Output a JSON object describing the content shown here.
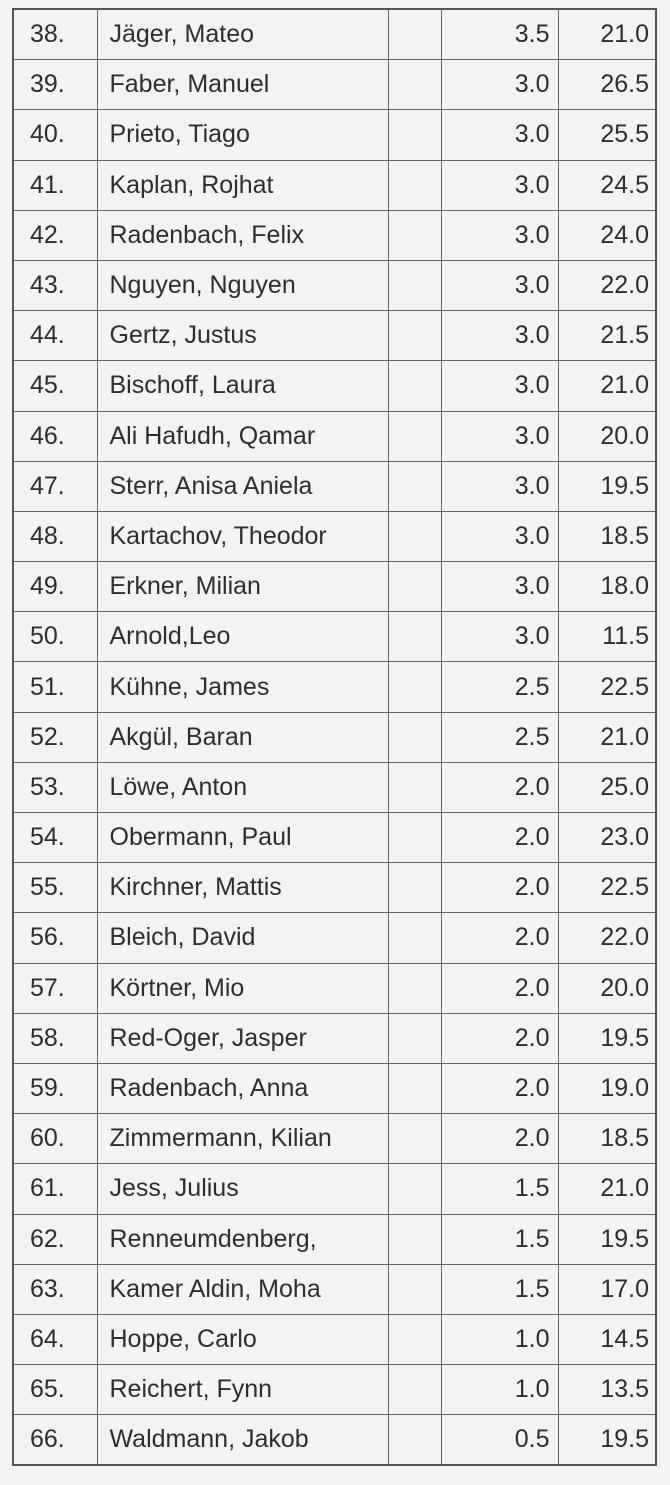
{
  "table": {
    "rows": [
      [
        "38.",
        "Jäger, Mateo",
        "3.5",
        "21.0"
      ],
      [
        "39.",
        "Faber, Manuel",
        "3.0",
        "26.5"
      ],
      [
        "40.",
        "Prieto, Tiago",
        "3.0",
        "25.5"
      ],
      [
        "41.",
        "Kaplan, Rojhat",
        "3.0",
        "24.5"
      ],
      [
        "42.",
        "Radenbach, Felix",
        "3.0",
        "24.0"
      ],
      [
        "43.",
        "Nguyen, Nguyen",
        "3.0",
        "22.0"
      ],
      [
        "44.",
        "Gertz, Justus",
        "3.0",
        "21.5"
      ],
      [
        "45.",
        "Bischoff, Laura",
        "3.0",
        "21.0"
      ],
      [
        "46.",
        "Ali Hafudh, Qamar",
        "3.0",
        "20.0"
      ],
      [
        "47.",
        "Sterr, Anisa Aniela",
        "3.0",
        "19.5"
      ],
      [
        "48.",
        "Kartachov, Theodor",
        "3.0",
        "18.5"
      ],
      [
        "49.",
        "Erkner, Milian",
        "3.0",
        "18.0"
      ],
      [
        "50.",
        "Arnold,Leo",
        "3.0",
        "11.5"
      ],
      [
        "51.",
        "Kühne, James",
        "2.5",
        "22.5"
      ],
      [
        "52.",
        "Akgül, Baran",
        "2.5",
        "21.0"
      ],
      [
        "53.",
        "Löwe, Anton",
        "2.0",
        "25.0"
      ],
      [
        "54.",
        "Obermann, Paul",
        "2.0",
        "23.0"
      ],
      [
        "55.",
        "Kirchner, Mattis",
        "2.0",
        "22.5"
      ],
      [
        "56.",
        "Bleich, David",
        "2.0",
        "22.0"
      ],
      [
        "57.",
        "Körtner, Mio",
        "2.0",
        "20.0"
      ],
      [
        "58.",
        "Red-Oger, Jasper",
        "2.0",
        "19.5"
      ],
      [
        "59.",
        "Radenbach, Anna",
        "2.0",
        "19.0"
      ],
      [
        "60.",
        "Zimmermann, Kilian",
        "2.0",
        "18.5"
      ],
      [
        "61.",
        "Jess, Julius",
        "1.5",
        "21.0"
      ],
      [
        "62.",
        "Renneumdenberg,",
        "1.5",
        "19.5"
      ],
      [
        "63.",
        "Kamer Aldin, Moha",
        "1.5",
        "17.0"
      ],
      [
        "64.",
        "Hoppe, Carlo",
        "1.0",
        "14.5"
      ],
      [
        "65.",
        "Reichert, Fynn",
        "1.0",
        "13.5"
      ],
      [
        "66.",
        "Waldmann, Jakob",
        "0.5",
        "19.5"
      ]
    ]
  }
}
